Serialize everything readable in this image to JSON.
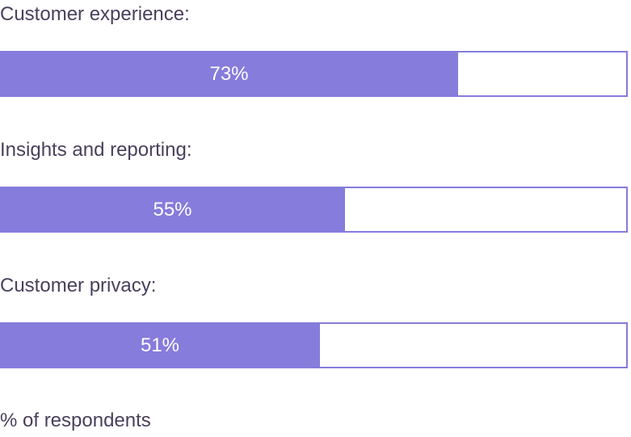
{
  "chart_data": {
    "type": "bar",
    "orientation": "horizontal",
    "categories": [
      "Customer experience:",
      "Insights and reporting:",
      "Customer privacy:"
    ],
    "values": [
      73,
      55,
      51
    ],
    "value_labels": [
      "73%",
      "55%",
      "51%"
    ],
    "xlim": [
      0,
      100
    ],
    "footnote": "% of respondents",
    "colors": {
      "bar": "#857cdc",
      "label": "#4a3f5c",
      "value_text": "#ffffff"
    }
  }
}
